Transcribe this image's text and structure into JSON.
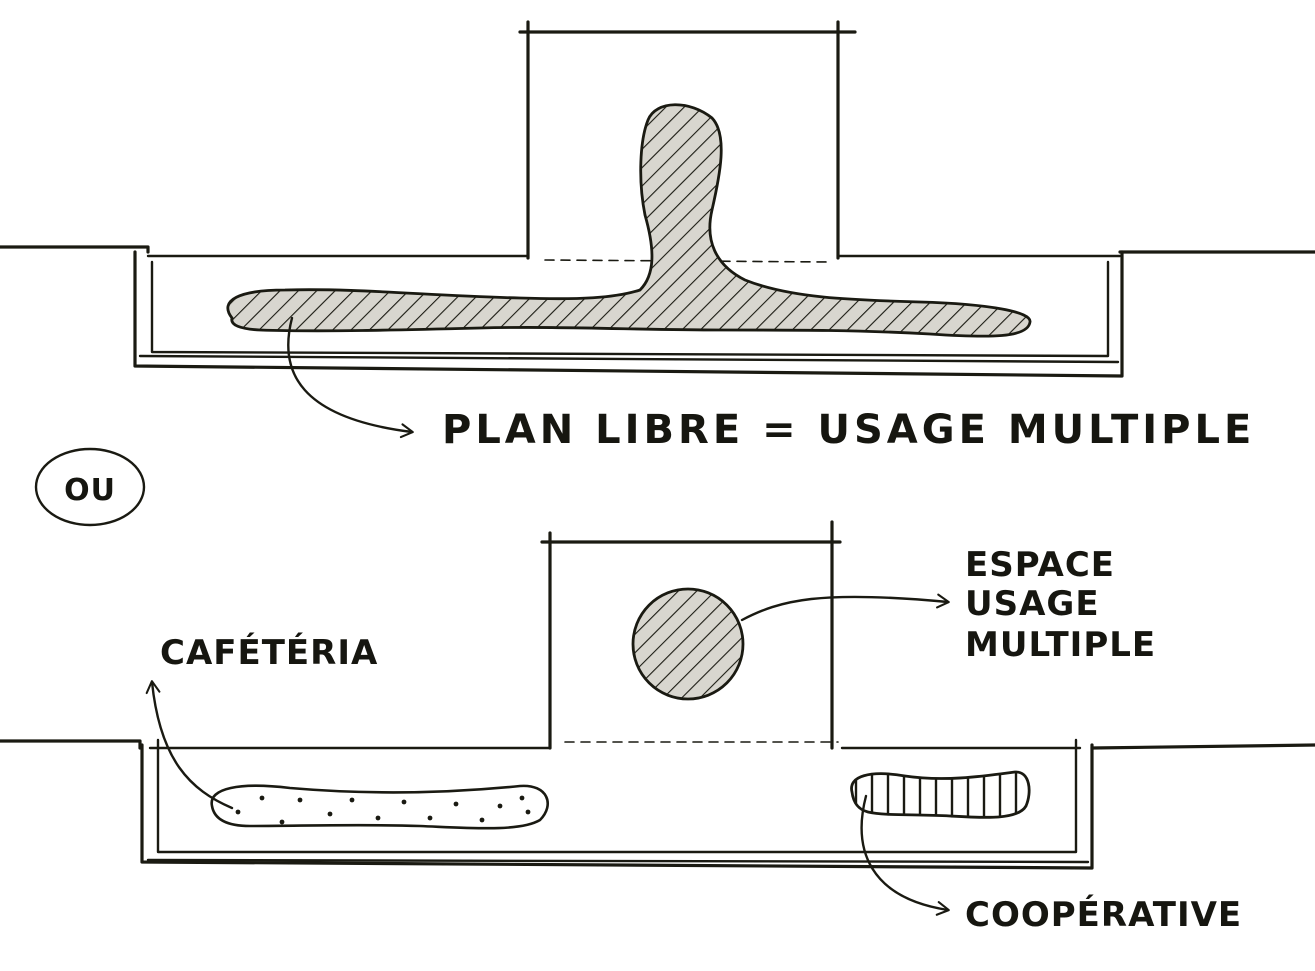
{
  "labels": {
    "plan_libre": "PLAN LIBRE = USAGE MULTIPLE",
    "ou": "OU",
    "espace_line1": "ESPACE",
    "espace_line2": "USAGE",
    "espace_line3": "MULTIPLE",
    "cafeteria": "CAFÉTÉRIA",
    "cooperative": "COOPÉRATIVE"
  },
  "colors": {
    "ink": "#1a1a12",
    "paper": "#ffffff"
  }
}
